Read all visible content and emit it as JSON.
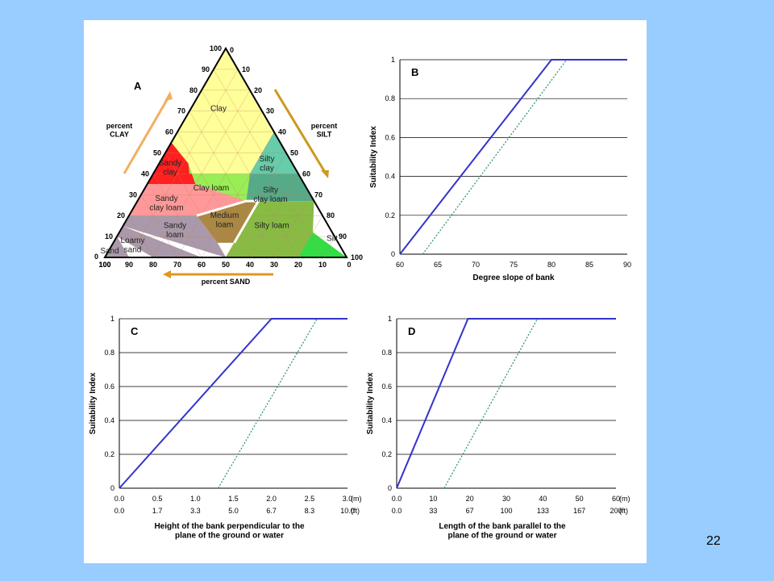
{
  "slide_number": "22",
  "colors": {
    "background": "#99ccff",
    "solid_line": "#3333cc",
    "dotted_line": "#339966",
    "arrow": "#f0b060"
  },
  "chart_data": [
    {
      "type": "diagram",
      "panel_label": "A",
      "axis_clay_label": "percent\nCLAY",
      "axis_silt_label": "percent\nSILT",
      "axis_sand_label": "percent SAND",
      "ticks": [
        "10",
        "20",
        "30",
        "40",
        "50",
        "60",
        "70",
        "80",
        "90",
        "100"
      ],
      "regions": [
        {
          "name": "Clay",
          "color": "#ffff99"
        },
        {
          "name": "Sandy\nclay",
          "color": "#ff2020"
        },
        {
          "name": "Silty\nclay",
          "color": "#66ccaa"
        },
        {
          "name": "Sandy\nclay loam",
          "color": "#ff9999"
        },
        {
          "name": "Clay loam",
          "color": "#99ee55"
        },
        {
          "name": "Silty\nclay loam",
          "color": "#55aa88"
        },
        {
          "name": "Medium\nloam",
          "color": "#aa8844"
        },
        {
          "name": "Sandy\nloam",
          "color": "#aa99aa"
        },
        {
          "name": "Loamy\nsand",
          "color": "#aa99aa"
        },
        {
          "name": "Sand",
          "color": "#aa99aa"
        },
        {
          "name": "Silty loam",
          "color": "#88bb44"
        },
        {
          "name": "Silt",
          "color": "#33dd44"
        }
      ]
    },
    {
      "type": "line",
      "panel_label": "B",
      "xlabel": "Degree slope of bank",
      "ylabel": "Suitability Index",
      "xlim": [
        60,
        90
      ],
      "ylim": [
        0,
        1
      ],
      "xticks": [
        "60",
        "65",
        "70",
        "75",
        "80",
        "85",
        "90"
      ],
      "yticks": [
        "0",
        "0.2",
        "0.4",
        "0.6",
        "0.8",
        "1"
      ],
      "grid": true,
      "series": [
        {
          "style": "solid",
          "x": [
            60,
            80,
            90
          ],
          "y": [
            0,
            1,
            1
          ]
        },
        {
          "style": "dotted",
          "x": [
            63,
            82
          ],
          "y": [
            0,
            1
          ]
        }
      ]
    },
    {
      "type": "line",
      "panel_label": "C",
      "xlabel": "Height of the bank perpendicular to the\nplane of the ground or water",
      "ylabel": "Suitability Index",
      "xlim": [
        0,
        3.0
      ],
      "ylim": [
        0,
        1
      ],
      "xticks_m": [
        "0.0",
        "0.5",
        "1.0",
        "1.5",
        "2.0",
        "2.5",
        "3.0"
      ],
      "xticks_ft": [
        "0.0",
        "1.7",
        "3.3",
        "5.0",
        "6.7",
        "8.3",
        "10.0"
      ],
      "unit_m": "(m)",
      "unit_ft": "(ft)",
      "yticks": [
        "0",
        "0.2",
        "0.4",
        "0.6",
        "0.8",
        "1"
      ],
      "grid": true,
      "series": [
        {
          "style": "solid",
          "x": [
            0,
            2.0,
            3.0
          ],
          "y": [
            0,
            1,
            1
          ]
        },
        {
          "style": "dotted",
          "x": [
            1.3,
            2.6
          ],
          "y": [
            0,
            1
          ]
        }
      ]
    },
    {
      "type": "line",
      "panel_label": "D",
      "xlabel": "Length of the bank parallel to the\nplane of the ground or water",
      "ylabel": "Suitability Index",
      "xlim": [
        0,
        60
      ],
      "ylim": [
        0,
        1
      ],
      "xticks_m": [
        "0.0",
        "10",
        "20",
        "30",
        "40",
        "50",
        "60"
      ],
      "xticks_ft": [
        "0.0",
        "33",
        "67",
        "100",
        "133",
        "167",
        "200"
      ],
      "unit_m": "(m)",
      "unit_ft": "(ft)",
      "yticks": [
        "0",
        "0.2",
        "0.4",
        "0.6",
        "0.8",
        "1"
      ],
      "grid": true,
      "series": [
        {
          "style": "solid",
          "x": [
            0,
            19.5,
            60
          ],
          "y": [
            0,
            1,
            1
          ]
        },
        {
          "style": "dotted",
          "x": [
            13,
            38.5
          ],
          "y": [
            0,
            1
          ]
        }
      ]
    }
  ]
}
